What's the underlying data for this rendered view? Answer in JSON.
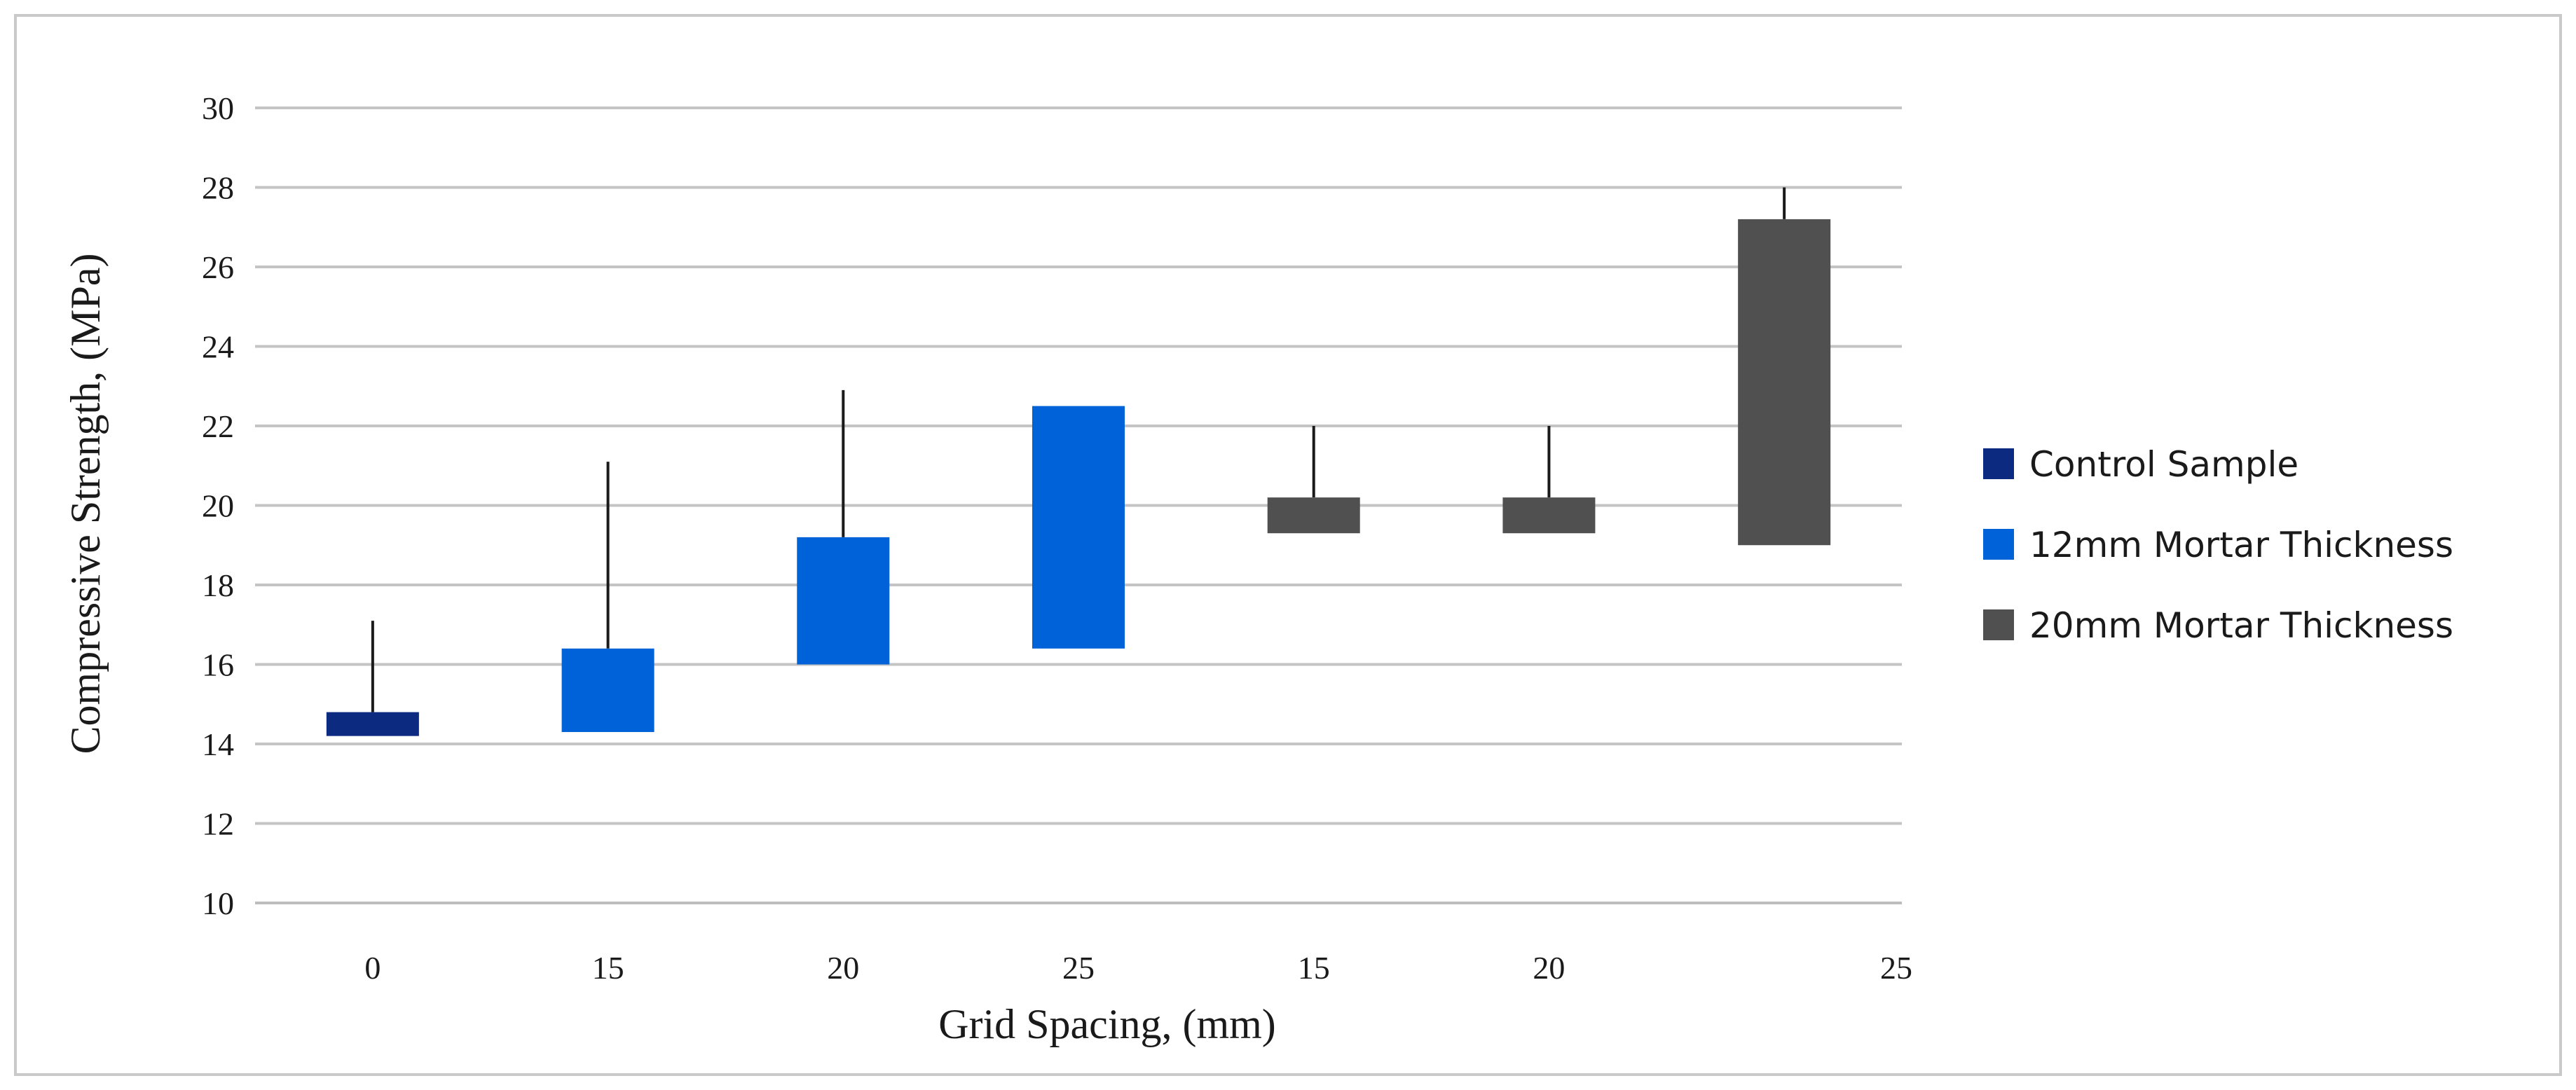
{
  "chart_data": {
    "type": "bar",
    "subtype": "floating-range-with-error-bars",
    "title": "",
    "xlabel": "Grid Spacing, (mm)",
    "ylabel": "Compressive Strength, (MPa)",
    "ylim": [
      10,
      30
    ],
    "yticks": [
      10,
      12,
      14,
      16,
      18,
      20,
      22,
      24,
      26,
      28,
      30
    ],
    "grid": true,
    "legend_position": "right",
    "categories": [
      "0",
      "15",
      "20",
      "25",
      "15",
      "20",
      "25"
    ],
    "series": [
      {
        "name": "Control Sample",
        "color": "#0b2a80",
        "points": [
          {
            "index": 0,
            "low": 14.2,
            "high": 14.8,
            "error_top": 17.1
          }
        ]
      },
      {
        "name": "12mm Mortar Thickness",
        "color": "#0062d8",
        "points": [
          {
            "index": 1,
            "low": 14.3,
            "high": 16.4,
            "error_top": 21.1
          },
          {
            "index": 2,
            "low": 16.0,
            "high": 19.2,
            "error_top": 22.9
          },
          {
            "index": 3,
            "low": 16.4,
            "high": 22.5,
            "error_top": null
          }
        ]
      },
      {
        "name": "20mm Mortar Thickness",
        "color": "#505050",
        "points": [
          {
            "index": 4,
            "low": 19.3,
            "high": 20.2,
            "error_top": 22.0
          },
          {
            "index": 5,
            "low": 19.3,
            "high": 20.2,
            "error_top": 22.0
          },
          {
            "index": 6,
            "low": 19.0,
            "high": 27.2,
            "error_top": 28.0
          }
        ]
      }
    ]
  }
}
